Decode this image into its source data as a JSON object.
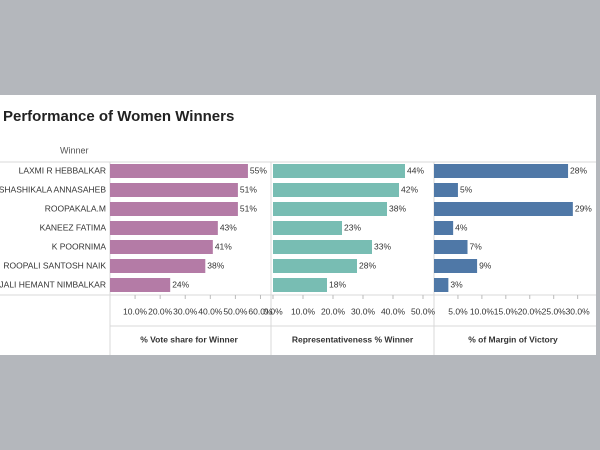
{
  "title": "Performance of Women Winners",
  "row_header": "Winner",
  "categories": [
    "LAXMI R HEBBALKAR",
    "JOLLE SHASHIKALA ANNASAHEB",
    "ROOPAKALA.M",
    "KANEEZ FATIMA",
    "K POORNIMA",
    "ROOPALI SANTOSH NAIK",
    "DR. ANJALI HEMANT NIMBALKAR"
  ],
  "chart_data": [
    {
      "type": "bar",
      "orientation": "horizontal",
      "x_label": "% Vote share for Winner",
      "color": "#b47ba6",
      "values": [
        55,
        51,
        51,
        43,
        41,
        38,
        24
      ],
      "value_labels": [
        "55%",
        "51%",
        "51%",
        "43%",
        "41%",
        "38%",
        "24%"
      ],
      "xlim": [
        0,
        63
      ],
      "xticks": [
        {
          "value": 10,
          "label": "10.0%"
        },
        {
          "value": 20,
          "label": "20.0%"
        },
        {
          "value": 30,
          "label": "30.0%"
        },
        {
          "value": 40,
          "label": "40.0%"
        },
        {
          "value": 50,
          "label": "50.0%"
        },
        {
          "value": 60,
          "label": "60.0%"
        }
      ]
    },
    {
      "type": "bar",
      "orientation": "horizontal",
      "x_label": "Representativeness % Winner",
      "color": "#78bdb3",
      "values": [
        44,
        42,
        38,
        23,
        33,
        28,
        18
      ],
      "value_labels": [
        "44%",
        "42%",
        "38%",
        "23%",
        "33%",
        "28%",
        "18%"
      ],
      "xlim": [
        0,
        53
      ],
      "xticks": [
        {
          "value": 0,
          "label": "0.0%"
        },
        {
          "value": 10,
          "label": "10.0%"
        },
        {
          "value": 20,
          "label": "20.0%"
        },
        {
          "value": 30,
          "label": "30.0%"
        },
        {
          "value": 40,
          "label": "40.0%"
        },
        {
          "value": 50,
          "label": "50.0%"
        }
      ]
    },
    {
      "type": "bar",
      "orientation": "horizontal",
      "x_label": "% of Margin of Victory",
      "color": "#4f78a7",
      "values": [
        28,
        5,
        29,
        4,
        7,
        9,
        3
      ],
      "value_labels": [
        "28%",
        "5%",
        "29%",
        "4%",
        "7%",
        "9%",
        "3%"
      ],
      "xlim": [
        0,
        33
      ],
      "xticks": [
        {
          "value": 5,
          "label": "5.0%"
        },
        {
          "value": 10,
          "label": "10.0%"
        },
        {
          "value": 15,
          "label": "15.0%"
        },
        {
          "value": 20,
          "label": "20.0%"
        },
        {
          "value": 25,
          "label": "25.0%"
        },
        {
          "value": 30,
          "label": "30.0%"
        }
      ]
    }
  ]
}
